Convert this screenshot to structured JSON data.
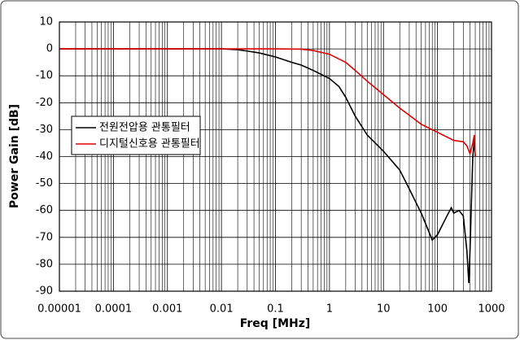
{
  "chart_data": {
    "type": "line",
    "xlabel": "Freq [MHz]",
    "ylabel": "Power Gain [dB]",
    "xscale": "log",
    "xlim": [
      1e-05,
      1000
    ],
    "xticks": [
      1e-05,
      0.0001,
      0.001,
      0.01,
      0.1,
      1,
      10,
      100,
      1000
    ],
    "ylim": [
      -90,
      10
    ],
    "yticks": [
      -90,
      -80,
      -70,
      -60,
      -50,
      -40,
      -30,
      -20,
      -10,
      0,
      10
    ],
    "grid": true,
    "minor_grid": true,
    "legend": "left",
    "series": [
      {
        "name": "전원전압용 관통필터",
        "color": "#000000",
        "x": [
          1e-05,
          0.001,
          0.01,
          0.02,
          0.03,
          0.05,
          0.1,
          0.2,
          0.3,
          0.5,
          1,
          1.5,
          2,
          3,
          5,
          10,
          20,
          30,
          50,
          80,
          100,
          150,
          180,
          200,
          250,
          300,
          350,
          380,
          400,
          420,
          450,
          480,
          500
        ],
        "values": [
          0,
          0,
          0,
          -0.3,
          -0.8,
          -1.5,
          -3,
          -5,
          -6,
          -8,
          -11,
          -14,
          -18,
          -25,
          -32,
          -38,
          -45,
          -52,
          -61,
          -71,
          -69,
          -62,
          -59,
          -61,
          -60,
          -62,
          -75,
          -87,
          -75,
          -60,
          -40,
          -34,
          -40
        ]
      },
      {
        "name": "디지털신호용 관통필터",
        "color": "#e00000",
        "x": [
          1e-05,
          0.001,
          0.01,
          0.1,
          0.3,
          0.5,
          1,
          2,
          3,
          5,
          10,
          20,
          50,
          100,
          200,
          300,
          350,
          400,
          450,
          480,
          500
        ],
        "values": [
          0,
          0,
          0,
          0,
          -0.1,
          -0.6,
          -2,
          -5,
          -8,
          -12,
          -17,
          -22,
          -28,
          -31,
          -34,
          -34.5,
          -36,
          -39,
          -35,
          -32,
          -40
        ]
      }
    ]
  }
}
